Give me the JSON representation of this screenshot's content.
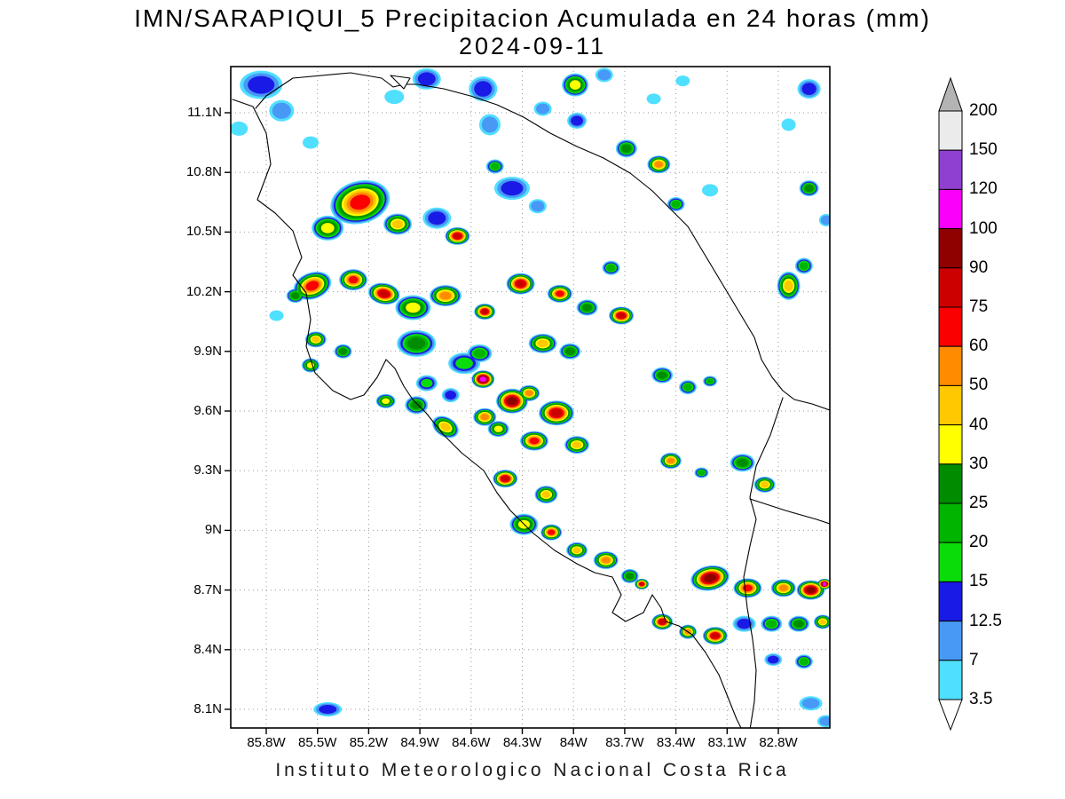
{
  "header": {
    "title": "IMN/SARAPIQUI_5 Precipitacion Acumulada en 24 horas (mm)",
    "date": "2024-09-11"
  },
  "footer": {
    "credit": "Instituto Meteorologico Nacional Costa Rica"
  },
  "axes": {
    "y_ticks": [
      "11.1N",
      "10.8N",
      "10.5N",
      "10.2N",
      "9.9N",
      "9.6N",
      "9.3N",
      "9N",
      "8.7N",
      "8.4N",
      "8.1N"
    ],
    "x_ticks": [
      "85.8W",
      "85.5W",
      "85.2W",
      "84.9W",
      "84.6W",
      "84.3W",
      "84W",
      "83.7W",
      "83.4W",
      "83.1W",
      "82.8W"
    ]
  },
  "colorbar": {
    "labels_top_to_bottom": [
      "200",
      "150",
      "120",
      "100",
      "90",
      "75",
      "60",
      "50",
      "40",
      "30",
      "25",
      "20",
      "15",
      "12.5",
      "7",
      "3.5"
    ],
    "band_colors_top_to_bottom": [
      "#ebebeb",
      "#9040d0",
      "#fa00fa",
      "#8f0000",
      "#cd0000",
      "#fa0000",
      "#ff8c00",
      "#ffc800",
      "#ffff00",
      "#008c00",
      "#00b400",
      "#0adc0a",
      "#1a1ae6",
      "#4898f5",
      "#4fdfff"
    ],
    "above_color": "#b4b4b4",
    "below_color": "#ffffff"
  },
  "chart_data": {
    "type": "heatmap",
    "title": "IMN/SARAPIQUI_5 Precipitacion Acumulada en 24 horas (mm)",
    "subtitle": "2024-09-11",
    "units": "mm / 24 h",
    "lon_range": [
      -86.0,
      -82.5
    ],
    "lat_range": [
      8.0,
      11.33
    ],
    "x_tick_values": [
      -85.8,
      -85.5,
      -85.2,
      -84.9,
      -84.6,
      -84.3,
      -84.0,
      -83.7,
      -83.4,
      -83.1,
      -82.8
    ],
    "y_tick_values": [
      11.1,
      10.8,
      10.5,
      10.2,
      9.9,
      9.6,
      9.3,
      9.0,
      8.7,
      8.4,
      8.1
    ],
    "grid": "dotted",
    "legend_position": "right",
    "levels_mm": [
      3.5,
      7,
      12.5,
      15,
      20,
      25,
      30,
      40,
      50,
      60,
      75,
      90,
      100,
      120,
      150,
      200
    ],
    "level_colors": [
      "#4fdfff",
      "#4898f5",
      "#1a1ae6",
      "#0adc0a",
      "#00b400",
      "#008c00",
      "#ffff00",
      "#ffc800",
      "#ff8c00",
      "#fa0000",
      "#cd0000",
      "#8f0000",
      "#fa00fa",
      "#9040d0",
      "#ebebeb",
      "#b4b4b4"
    ],
    "cells_format": [
      "lon",
      "lat",
      "rx_px",
      "ry_px",
      "peak_mm",
      "rot_deg(optional)"
    ],
    "cells": [
      [
        -85.83,
        11.24,
        24,
        16,
        12.5
      ],
      [
        -85.71,
        11.11,
        14,
        12,
        7
      ],
      [
        -85.96,
        11.02,
        10,
        8,
        3.5
      ],
      [
        -85.54,
        10.95,
        9,
        7,
        3.5
      ],
      [
        -84.86,
        11.27,
        16,
        12,
        12.5
      ],
      [
        -84.53,
        11.22,
        16,
        14,
        12.5
      ],
      [
        -84.49,
        11.04,
        12,
        12,
        7
      ],
      [
        -84.46,
        10.83,
        10,
        8,
        20
      ],
      [
        -83.99,
        11.24,
        15,
        13,
        30
      ],
      [
        -83.98,
        11.06,
        11,
        9,
        12.5
      ],
      [
        -83.69,
        10.92,
        12,
        10,
        25
      ],
      [
        -83.5,
        10.84,
        13,
        10,
        50
      ],
      [
        -83.4,
        10.64,
        10,
        8,
        20
      ],
      [
        -83.2,
        10.71,
        9,
        7,
        3.5
      ],
      [
        -82.62,
        11.22,
        13,
        11,
        12.5
      ],
      [
        -82.74,
        11.04,
        8,
        7,
        3.5
      ],
      [
        -82.62,
        10.72,
        11,
        9,
        25
      ],
      [
        -82.52,
        10.56,
        8,
        7,
        7
      ],
      [
        -85.25,
        10.65,
        34,
        24,
        60,
        -15
      ],
      [
        -85.44,
        10.52,
        18,
        14,
        30
      ],
      [
        -85.03,
        10.54,
        16,
        12,
        40
      ],
      [
        -84.8,
        10.57,
        16,
        12,
        12.5
      ],
      [
        -84.68,
        10.48,
        14,
        10,
        75
      ],
      [
        -84.36,
        10.72,
        20,
        13,
        12.5
      ],
      [
        -84.21,
        10.63,
        10,
        8,
        7
      ],
      [
        -85.53,
        10.23,
        22,
        15,
        60,
        -20
      ],
      [
        -85.29,
        10.26,
        16,
        12,
        60
      ],
      [
        -85.11,
        10.19,
        18,
        12,
        75,
        10
      ],
      [
        -84.94,
        10.12,
        20,
        14,
        30
      ],
      [
        -84.75,
        10.18,
        18,
        12,
        50
      ],
      [
        -84.52,
        10.1,
        12,
        9,
        75
      ],
      [
        -84.31,
        10.24,
        16,
        12,
        75
      ],
      [
        -84.08,
        10.19,
        14,
        10,
        60
      ],
      [
        -83.92,
        10.12,
        12,
        9,
        25
      ],
      [
        -83.72,
        10.08,
        14,
        10,
        75
      ],
      [
        -84.18,
        9.94,
        16,
        11,
        40
      ],
      [
        -84.02,
        9.9,
        12,
        9,
        25
      ],
      [
        -84.92,
        9.94,
        22,
        15,
        25
      ],
      [
        -84.64,
        9.84,
        18,
        12,
        15
      ],
      [
        -84.53,
        9.76,
        13,
        10,
        100
      ],
      [
        -84.36,
        9.65,
        18,
        14,
        90
      ],
      [
        -84.1,
        9.59,
        20,
        14,
        75
      ],
      [
        -84.23,
        9.45,
        16,
        11,
        60
      ],
      [
        -83.98,
        9.43,
        14,
        10,
        40
      ],
      [
        -84.52,
        9.57,
        13,
        10,
        50
      ],
      [
        -84.75,
        9.52,
        16,
        11,
        40,
        30
      ],
      [
        -84.92,
        9.63,
        13,
        10,
        25
      ],
      [
        -85.1,
        9.65,
        11,
        8,
        30
      ],
      [
        -84.4,
        9.26,
        14,
        10,
        75
      ],
      [
        -84.16,
        9.18,
        13,
        10,
        40
      ],
      [
        -84.29,
        9.03,
        16,
        12,
        30
      ],
      [
        -84.13,
        8.99,
        12,
        9,
        60
      ],
      [
        -83.98,
        8.9,
        12,
        9,
        40
      ],
      [
        -83.81,
        8.85,
        14,
        10,
        50
      ],
      [
        -83.67,
        8.77,
        10,
        8,
        25
      ],
      [
        -83.6,
        8.73,
        8,
        6,
        75
      ],
      [
        -83.48,
        9.78,
        12,
        9,
        25
      ],
      [
        -83.33,
        9.72,
        10,
        8,
        20
      ],
      [
        -83.2,
        9.75,
        8,
        6,
        20
      ],
      [
        -83.43,
        9.35,
        12,
        9,
        50
      ],
      [
        -83.25,
        9.29,
        8,
        6,
        20
      ],
      [
        -83.01,
        9.34,
        14,
        10,
        25
      ],
      [
        -82.88,
        9.23,
        12,
        9,
        40
      ],
      [
        -82.74,
        10.23,
        13,
        16,
        40
      ],
      [
        -82.65,
        10.33,
        10,
        9,
        20
      ],
      [
        -83.2,
        8.76,
        22,
        14,
        90,
        -10
      ],
      [
        -82.98,
        8.71,
        16,
        11,
        60
      ],
      [
        -82.77,
        8.71,
        14,
        10,
        50
      ],
      [
        -82.61,
        8.7,
        16,
        11,
        90
      ],
      [
        -82.53,
        8.73,
        8,
        6,
        100
      ],
      [
        -83.48,
        8.54,
        12,
        9,
        75
      ],
      [
        -83.33,
        8.49,
        10,
        8,
        50
      ],
      [
        -83.17,
        8.47,
        14,
        10,
        75
      ],
      [
        -83.0,
        8.53,
        13,
        9,
        12.5
      ],
      [
        -82.84,
        8.53,
        12,
        9,
        20
      ],
      [
        -82.68,
        8.53,
        12,
        9,
        25
      ],
      [
        -82.54,
        8.54,
        10,
        8,
        40
      ],
      [
        -82.83,
        8.35,
        10,
        7,
        12.5
      ],
      [
        -82.65,
        8.34,
        10,
        8,
        20
      ],
      [
        -85.44,
        8.1,
        16,
        8,
        12.5
      ],
      [
        -82.61,
        8.13,
        13,
        8,
        7
      ],
      [
        -82.52,
        8.04,
        10,
        7,
        7
      ],
      [
        -85.05,
        11.18,
        11,
        8,
        3.5
      ],
      [
        -84.18,
        11.12,
        10,
        8,
        7
      ],
      [
        -83.82,
        11.29,
        10,
        8,
        7
      ],
      [
        -85.51,
        9.96,
        12,
        9,
        40
      ],
      [
        -85.35,
        9.9,
        10,
        8,
        25
      ],
      [
        -85.54,
        9.83,
        10,
        8,
        30
      ],
      [
        -85.63,
        10.18,
        10,
        8,
        25
      ],
      [
        -85.74,
        10.08,
        8,
        6,
        3.5
      ],
      [
        -84.86,
        9.74,
        12,
        9,
        15
      ],
      [
        -84.72,
        9.68,
        10,
        8,
        12.5
      ],
      [
        -83.53,
        11.17,
        8,
        6,
        3.5
      ],
      [
        -83.36,
        11.26,
        8,
        6,
        3.5
      ],
      [
        -84.44,
        9.51,
        12,
        9,
        30
      ],
      [
        -84.26,
        9.69,
        12,
        9,
        50
      ],
      [
        -84.55,
        9.89,
        14,
        10,
        20
      ],
      [
        -83.78,
        10.32,
        10,
        8,
        20
      ]
    ]
  }
}
